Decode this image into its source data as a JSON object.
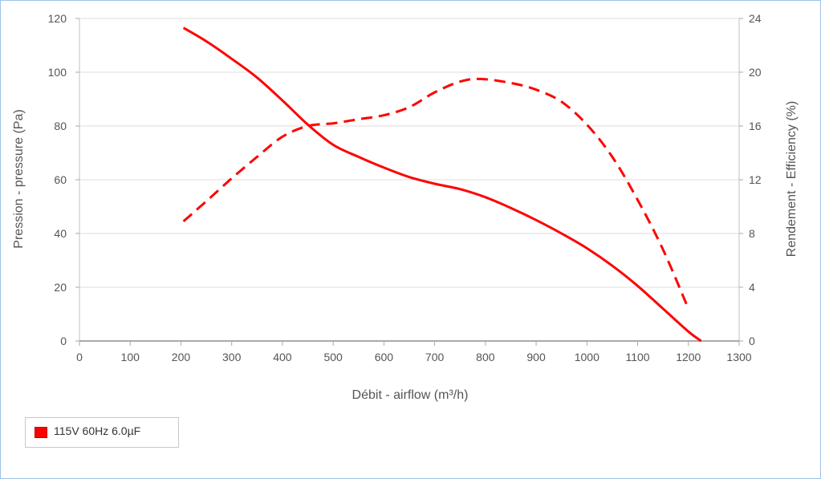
{
  "chart_data": {
    "type": "line",
    "xlabel": "Débit - airflow (m³/h)",
    "ylabel_left": "Pression - pressure (Pa)",
    "ylabel_right": "Rendement - Efficiency (%)",
    "xlim": [
      0,
      1300
    ],
    "ylim_left": [
      0,
      120
    ],
    "ylim_right": [
      0,
      24
    ],
    "x_ticks": [
      "0",
      "100",
      "200",
      "300",
      "400",
      "500",
      "600",
      "700",
      "800",
      "900",
      "1000",
      "1100",
      "1200",
      "1300"
    ],
    "y_left_ticks": [
      "0",
      "20",
      "40",
      "60",
      "80",
      "100",
      "120"
    ],
    "y_right_ticks": [
      "0",
      "4",
      "8",
      "12",
      "16",
      "20",
      "24"
    ],
    "grid": "horizontal",
    "legend_position": "bottom-left",
    "series": [
      {
        "name": "115V 60Hz 6.0µF",
        "axis": "left",
        "style": "solid",
        "color": "#ff0000",
        "x": [
          205,
          250,
          300,
          350,
          400,
          450,
          500,
          550,
          600,
          650,
          700,
          750,
          800,
          850,
          900,
          950,
          1000,
          1050,
          1100,
          1150,
          1200,
          1225
        ],
        "y": [
          116.5,
          111.5,
          105,
          98,
          89.5,
          80.5,
          73,
          68.5,
          64.5,
          61,
          58.5,
          56.5,
          53.5,
          49.5,
          45,
          40,
          34.5,
          28,
          20.5,
          12,
          3.5,
          0
        ]
      },
      {
        "name": "115V 60Hz 6.0µF",
        "axis": "right",
        "style": "dashed",
        "color": "#ff0000",
        "x": [
          205,
          250,
          300,
          350,
          400,
          450,
          500,
          550,
          600,
          650,
          700,
          750,
          790,
          850,
          900,
          950,
          1000,
          1050,
          1100,
          1150,
          1200
        ],
        "y": [
          8.9,
          10.4,
          12.1,
          13.7,
          15.2,
          16,
          16.2,
          16.5,
          16.8,
          17.4,
          18.5,
          19.3,
          19.5,
          19.2,
          18.7,
          17.8,
          16.1,
          13.7,
          10.5,
          6.8,
          2.4
        ]
      }
    ]
  },
  "legend": {
    "label": "115V 60Hz 6.0µF",
    "color": "#ff0000"
  }
}
